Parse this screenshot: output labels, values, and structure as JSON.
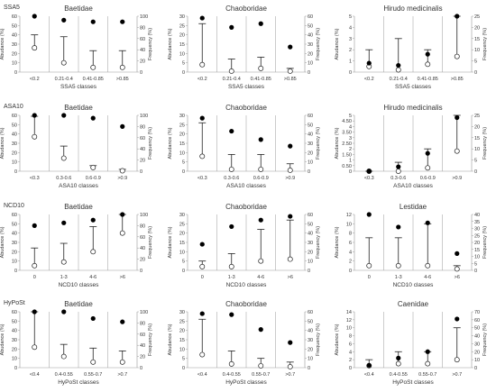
{
  "chart_data": {
    "type": "scatter",
    "rows": [
      {
        "label": "SSA5",
        "panels": [
          {
            "title": "Baetidae",
            "xlabel": "SSA5 classes",
            "ylabel": "Abudance (%)",
            "y2label": "Frequency (%)",
            "categories": [
              "<0.2",
              "0.21-0.4",
              "0.41-0.85",
              ">0.85"
            ],
            "ylim": [
              0,
              60
            ],
            "yticks": [
              0,
              10,
              20,
              30,
              40,
              50,
              60
            ],
            "y2lim": [
              0,
              100
            ],
            "y2ticks": [
              0,
              20,
              40,
              60,
              80,
              100
            ],
            "abundance_open": [
              26,
              10,
              5,
              5
            ],
            "abundance_whisker": [
              40,
              38,
              23,
              23
            ],
            "frequency_filled": [
              100,
              93,
              90,
              90
            ]
          },
          {
            "title": "Chaoboridae",
            "xlabel": "SSA5 classes",
            "ylabel": "Abudance (%)",
            "y2label": "Frequency (%)",
            "categories": [
              "<0.2",
              "0.21-0.4",
              "0.41-0.85",
              ">0.85"
            ],
            "ylim": [
              0,
              30
            ],
            "yticks": [
              0,
              5,
              10,
              15,
              20,
              25,
              30
            ],
            "y2lim": [
              0,
              60
            ],
            "y2ticks": [
              0,
              10,
              20,
              30,
              40,
              50,
              60
            ],
            "abundance_open": [
              4,
              0.5,
              2,
              0.5
            ],
            "abundance_whisker": [
              26,
              7,
              8,
              2
            ],
            "frequency_filled": [
              58,
              48,
              52,
              27
            ]
          },
          {
            "title": "Hirudo medicinalis",
            "xlabel": "SSA5 classes",
            "ylabel": "Abudance (%)",
            "y2label": "Frequency (%)",
            "categories": [
              "<0.2",
              "0.21-0.4",
              "0.41-0.85",
              ">0.85"
            ],
            "ylim": [
              0,
              5
            ],
            "yticks": [
              0,
              1,
              2,
              3,
              4,
              5
            ],
            "y2lim": [
              0,
              25
            ],
            "y2ticks": [
              0,
              5,
              10,
              15,
              20,
              25
            ],
            "abundance_open": [
              0.5,
              0.2,
              0.7,
              1.4
            ],
            "abundance_whisker": [
              2,
              3,
              2,
              5
            ],
            "frequency_filled": [
              4,
              3,
              8,
              25
            ]
          }
        ]
      },
      {
        "label": "ASA10",
        "panels": [
          {
            "title": "Baetidae",
            "xlabel": "ASA10 classes",
            "ylabel": "Abudance (%)",
            "y2label": "Frequency (%)",
            "categories": [
              "<0.3",
              "0.3-0.6",
              "0.6-0.9",
              ">0.9"
            ],
            "ylim": [
              0,
              60
            ],
            "yticks": [
              0,
              10,
              20,
              30,
              40,
              50,
              60
            ],
            "y2lim": [
              0,
              100
            ],
            "y2ticks": [
              0,
              20,
              40,
              60,
              80,
              100
            ],
            "abundance_open": [
              37,
              14,
              4,
              0.5
            ],
            "abundance_whisker": [
              59,
              27,
              6,
              2
            ],
            "frequency_filled": [
              100,
              100,
              95,
              80
            ]
          },
          {
            "title": "Chaoboridae",
            "xlabel": "ASA10 classes",
            "ylabel": "Abudance (%)",
            "y2label": "Frequency (%)",
            "categories": [
              "<0.3",
              "0.3-0.6",
              "0.6-0.9",
              ">0.9"
            ],
            "ylim": [
              0,
              30
            ],
            "yticks": [
              0,
              5,
              10,
              15,
              20,
              25,
              30
            ],
            "y2lim": [
              0,
              60
            ],
            "y2ticks": [
              0,
              10,
              20,
              30,
              40,
              50,
              60
            ],
            "abundance_open": [
              8,
              1,
              1,
              0.5
            ],
            "abundance_whisker": [
              26,
              9,
              9,
              4
            ],
            "frequency_filled": [
              57,
              43,
              34,
              27
            ]
          },
          {
            "title": "Hirudo medicinalis",
            "xlabel": "ASA10 classes",
            "ylabel": "Abudance (%)",
            "y2label": "Frequency (%)",
            "categories": [
              "<0.3",
              "0.3-0.6",
              "0.6-0.9",
              ">0.9"
            ],
            "ylim": [
              0,
              5
            ],
            "yticks": [
              0,
              0.5,
              1,
              1.5,
              2,
              2.5,
              3,
              3.5,
              4,
              4.5,
              5
            ],
            "y2lim": [
              0,
              25
            ],
            "y2ticks": [
              0,
              5,
              10,
              15,
              20,
              25
            ],
            "abundance_open": [
              0,
              0,
              0.3,
              1.8
            ],
            "abundance_whisker": [
              0,
              0.8,
              2,
              5
            ],
            "frequency_filled": [
              0,
              2,
              8,
              24
            ]
          }
        ]
      },
      {
        "label": "NCD10",
        "panels": [
          {
            "title": "Baetidae",
            "xlabel": "NCD10 classes",
            "ylabel": "Abudance (%)",
            "y2label": "Frequency (%)",
            "categories": [
              "0",
              "1-3",
              "4-6",
              ">6"
            ],
            "ylim": [
              0,
              60
            ],
            "yticks": [
              0,
              10,
              20,
              30,
              40,
              50,
              60
            ],
            "y2lim": [
              0,
              100
            ],
            "y2ticks": [
              0,
              20,
              40,
              60,
              80,
              100
            ],
            "abundance_open": [
              5,
              9,
              20,
              40
            ],
            "abundance_whisker": [
              24,
              29,
              47,
              60
            ],
            "frequency_filled": [
              80,
              85,
              90,
              100
            ]
          },
          {
            "title": "Chaoboridae",
            "xlabel": "NCD10 classes",
            "ylabel": "Abudance (%)",
            "y2label": "Frequency (%)",
            "categories": [
              "0",
              "1-3",
              "4-6",
              ">6"
            ],
            "ylim": [
              0,
              30
            ],
            "yticks": [
              0,
              5,
              10,
              15,
              20,
              25,
              30
            ],
            "y2lim": [
              0,
              60
            ],
            "y2ticks": [
              0,
              10,
              20,
              30,
              40,
              50,
              60
            ],
            "abundance_open": [
              2,
              2,
              5,
              6
            ],
            "abundance_whisker": [
              5,
              9,
              22,
              27
            ],
            "frequency_filled": [
              28,
              47,
              54,
              58
            ]
          },
          {
            "title": "Lestidae",
            "xlabel": "NCD10 classes",
            "ylabel": "Abudance (%)",
            "y2label": "Frequency (%)",
            "categories": [
              "0",
              "1-3",
              "4-6",
              ">6"
            ],
            "ylim": [
              0,
              12
            ],
            "yticks": [
              0,
              2,
              4,
              6,
              8,
              10,
              12
            ],
            "y2lim": [
              0,
              40
            ],
            "y2ticks": [
              0,
              5,
              10,
              15,
              20,
              25,
              30,
              35,
              40
            ],
            "abundance_open": [
              1,
              1,
              1,
              0.3
            ],
            "abundance_whisker": [
              7,
              7,
              10,
              1
            ],
            "frequency_filled": [
              40,
              31,
              34,
              12
            ]
          }
        ]
      },
      {
        "label": "HyPoSt",
        "panels": [
          {
            "title": "Baetidae",
            "xlabel": "HyPoSt classes",
            "ylabel": "Abudance (%)",
            "y2label": "Frequency (%)",
            "categories": [
              "<0.4",
              "0.4-0.55",
              "0.55-0.7",
              ">0.7"
            ],
            "ylim": [
              0,
              60
            ],
            "yticks": [
              0,
              10,
              20,
              30,
              40,
              50,
              60
            ],
            "y2lim": [
              0,
              100
            ],
            "y2ticks": [
              0,
              20,
              40,
              60,
              80,
              100
            ],
            "abundance_open": [
              22,
              12,
              6,
              6
            ],
            "abundance_whisker": [
              60,
              25,
              21,
              18
            ],
            "frequency_filled": [
              100,
              100,
              88,
              82
            ]
          },
          {
            "title": "Chaoboridae",
            "xlabel": "HyPoSt classes",
            "ylabel": "Abudance (%)",
            "y2label": "Frequency (%)",
            "categories": [
              "<0.4",
              "0.4-0.55",
              "0.55-0.7",
              ">0.7"
            ],
            "ylim": [
              0,
              30
            ],
            "yticks": [
              0,
              5,
              10,
              15,
              20,
              25,
              30
            ],
            "y2lim": [
              0,
              60
            ],
            "y2ticks": [
              0,
              10,
              20,
              30,
              40,
              50,
              60
            ],
            "abundance_open": [
              7,
              2,
              1,
              0.5
            ],
            "abundance_whisker": [
              26,
              9,
              5,
              3
            ],
            "frequency_filled": [
              58,
              57,
              41,
              27
            ]
          },
          {
            "title": "Caenidae",
            "xlabel": "HyPoSt classes",
            "ylabel": "Abudance (%)",
            "y2label": "Frequency (%)",
            "categories": [
              "<0.4",
              "0.4-0.55",
              "0.55-0.7",
              ">0.7"
            ],
            "ylim": [
              0,
              14
            ],
            "yticks": [
              0,
              2,
              4,
              6,
              8,
              10,
              12,
              14
            ],
            "y2lim": [
              0,
              70
            ],
            "y2ticks": [
              0,
              10,
              20,
              30,
              40,
              50,
              60,
              70
            ],
            "abundance_open": [
              0.5,
              1,
              1,
              2
            ],
            "abundance_whisker": [
              2,
              4,
              4,
              10
            ],
            "frequency_filled": [
              3,
              12,
              20,
              61
            ]
          }
        ]
      }
    ]
  }
}
